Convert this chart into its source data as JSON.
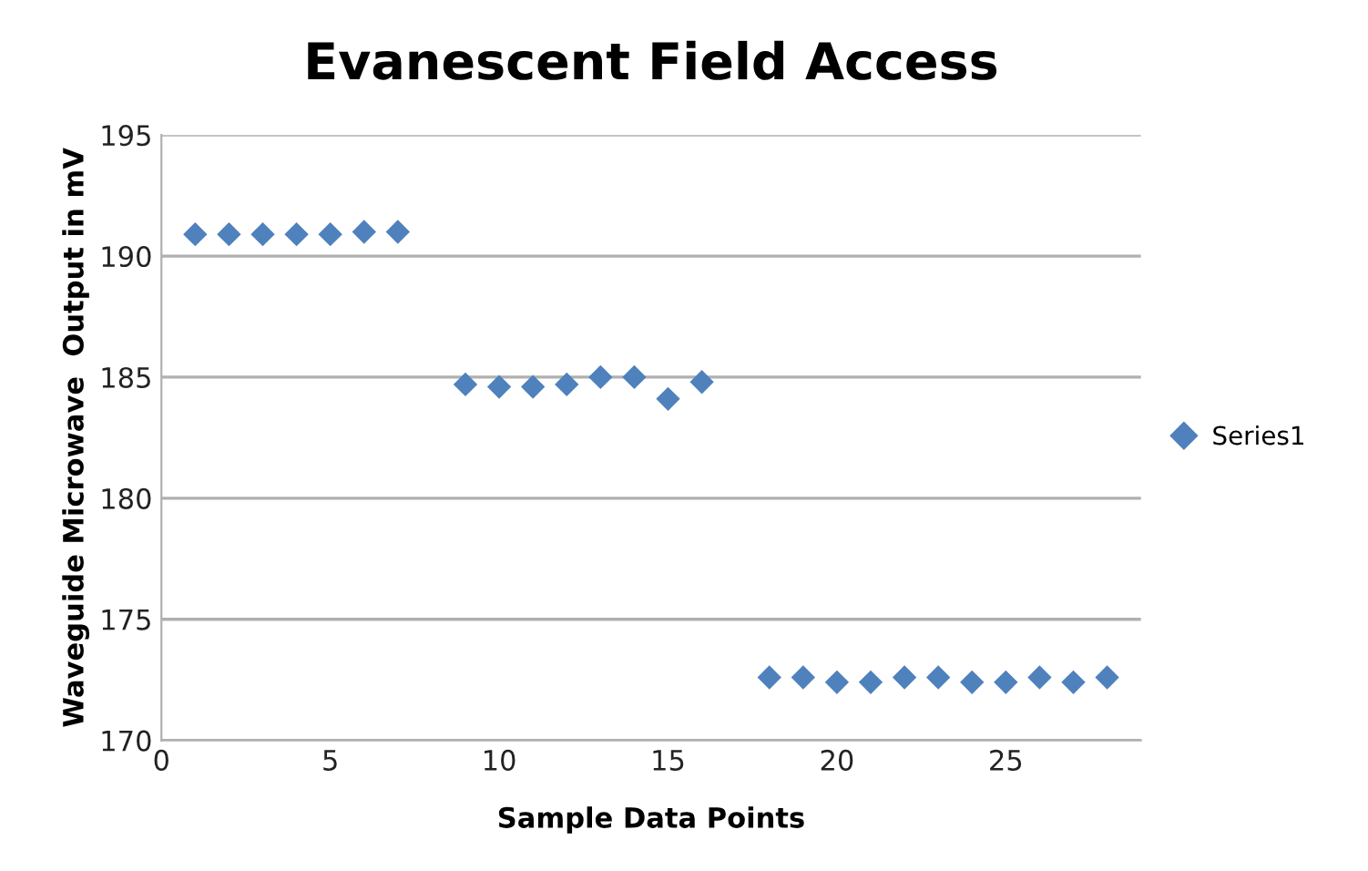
{
  "chart_data": {
    "type": "scatter",
    "title": "Evanescent Field Access",
    "xlabel": "Sample Data Points",
    "ylabel": "Waveguide Microwave  Output in mV",
    "series": [
      {
        "name": "Series1",
        "color": "#4f81bd",
        "x": [
          1,
          2,
          3,
          4,
          5,
          6,
          7,
          9,
          10,
          11,
          12,
          13,
          14,
          15,
          16,
          18,
          19,
          20,
          21,
          22,
          23,
          24,
          25,
          26,
          27,
          28
        ],
        "values": [
          190.9,
          190.9,
          190.9,
          190.9,
          190.9,
          191.0,
          191.0,
          184.7,
          184.6,
          184.6,
          184.7,
          185.0,
          185.0,
          184.1,
          184.8,
          172.6,
          172.6,
          172.4,
          172.4,
          172.6,
          172.6,
          172.4,
          172.4,
          172.6,
          172.4,
          172.6
        ]
      }
    ],
    "xlim": [
      0,
      29
    ],
    "xticks": [
      0,
      5,
      10,
      15,
      20,
      25
    ],
    "ylim": [
      170,
      195
    ],
    "yticks": [
      170,
      175,
      180,
      185,
      190,
      195
    ],
    "grid": "y",
    "legend": "right",
    "marker": "diamond"
  }
}
